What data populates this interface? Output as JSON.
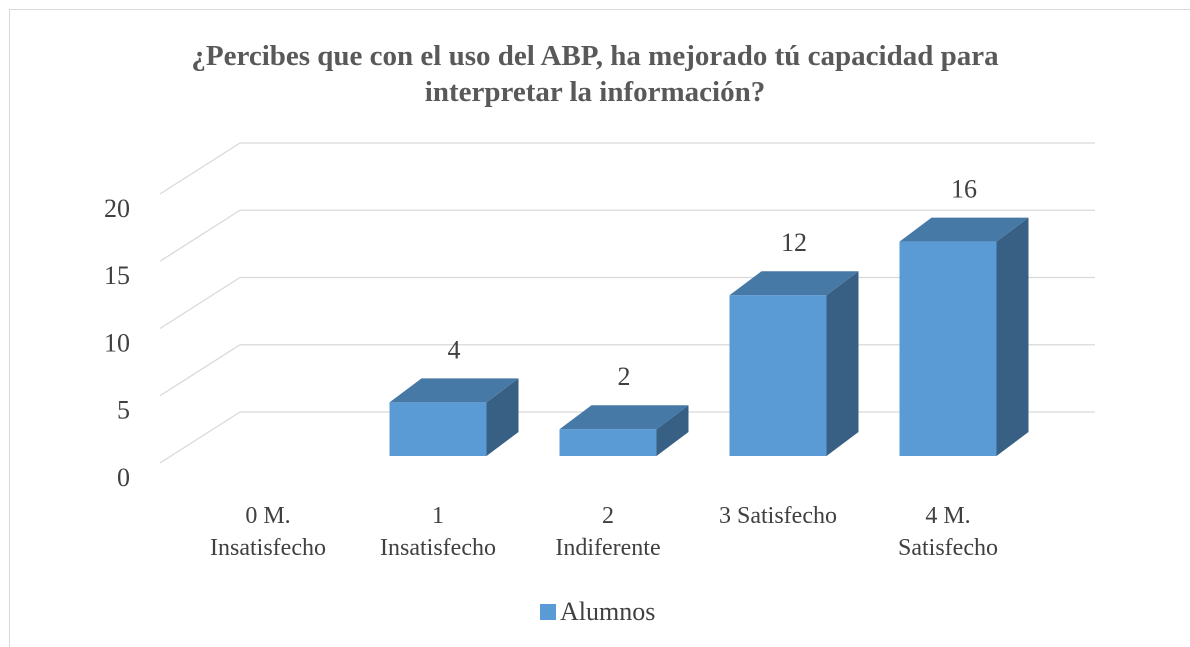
{
  "chart_data": {
    "type": "bar3d",
    "title": "¿Percibes que con el uso del ABP, ha mejorado tú capacidad para interpretar la información?",
    "categories": [
      "0 M.\nInsatisfecho",
      "1\nInsatisfecho",
      "2\nIndiferente",
      "3 Satisfecho",
      "4 M.\nSatisfecho"
    ],
    "series": [
      {
        "name": "Alumnos",
        "color": "#5b9bd5",
        "values": [
          0,
          4,
          2,
          12,
          16
        ]
      }
    ],
    "ylim": [
      0,
      20
    ],
    "yticks": [
      0,
      5,
      10,
      15,
      20
    ],
    "grid": true,
    "legend": "bottom"
  }
}
